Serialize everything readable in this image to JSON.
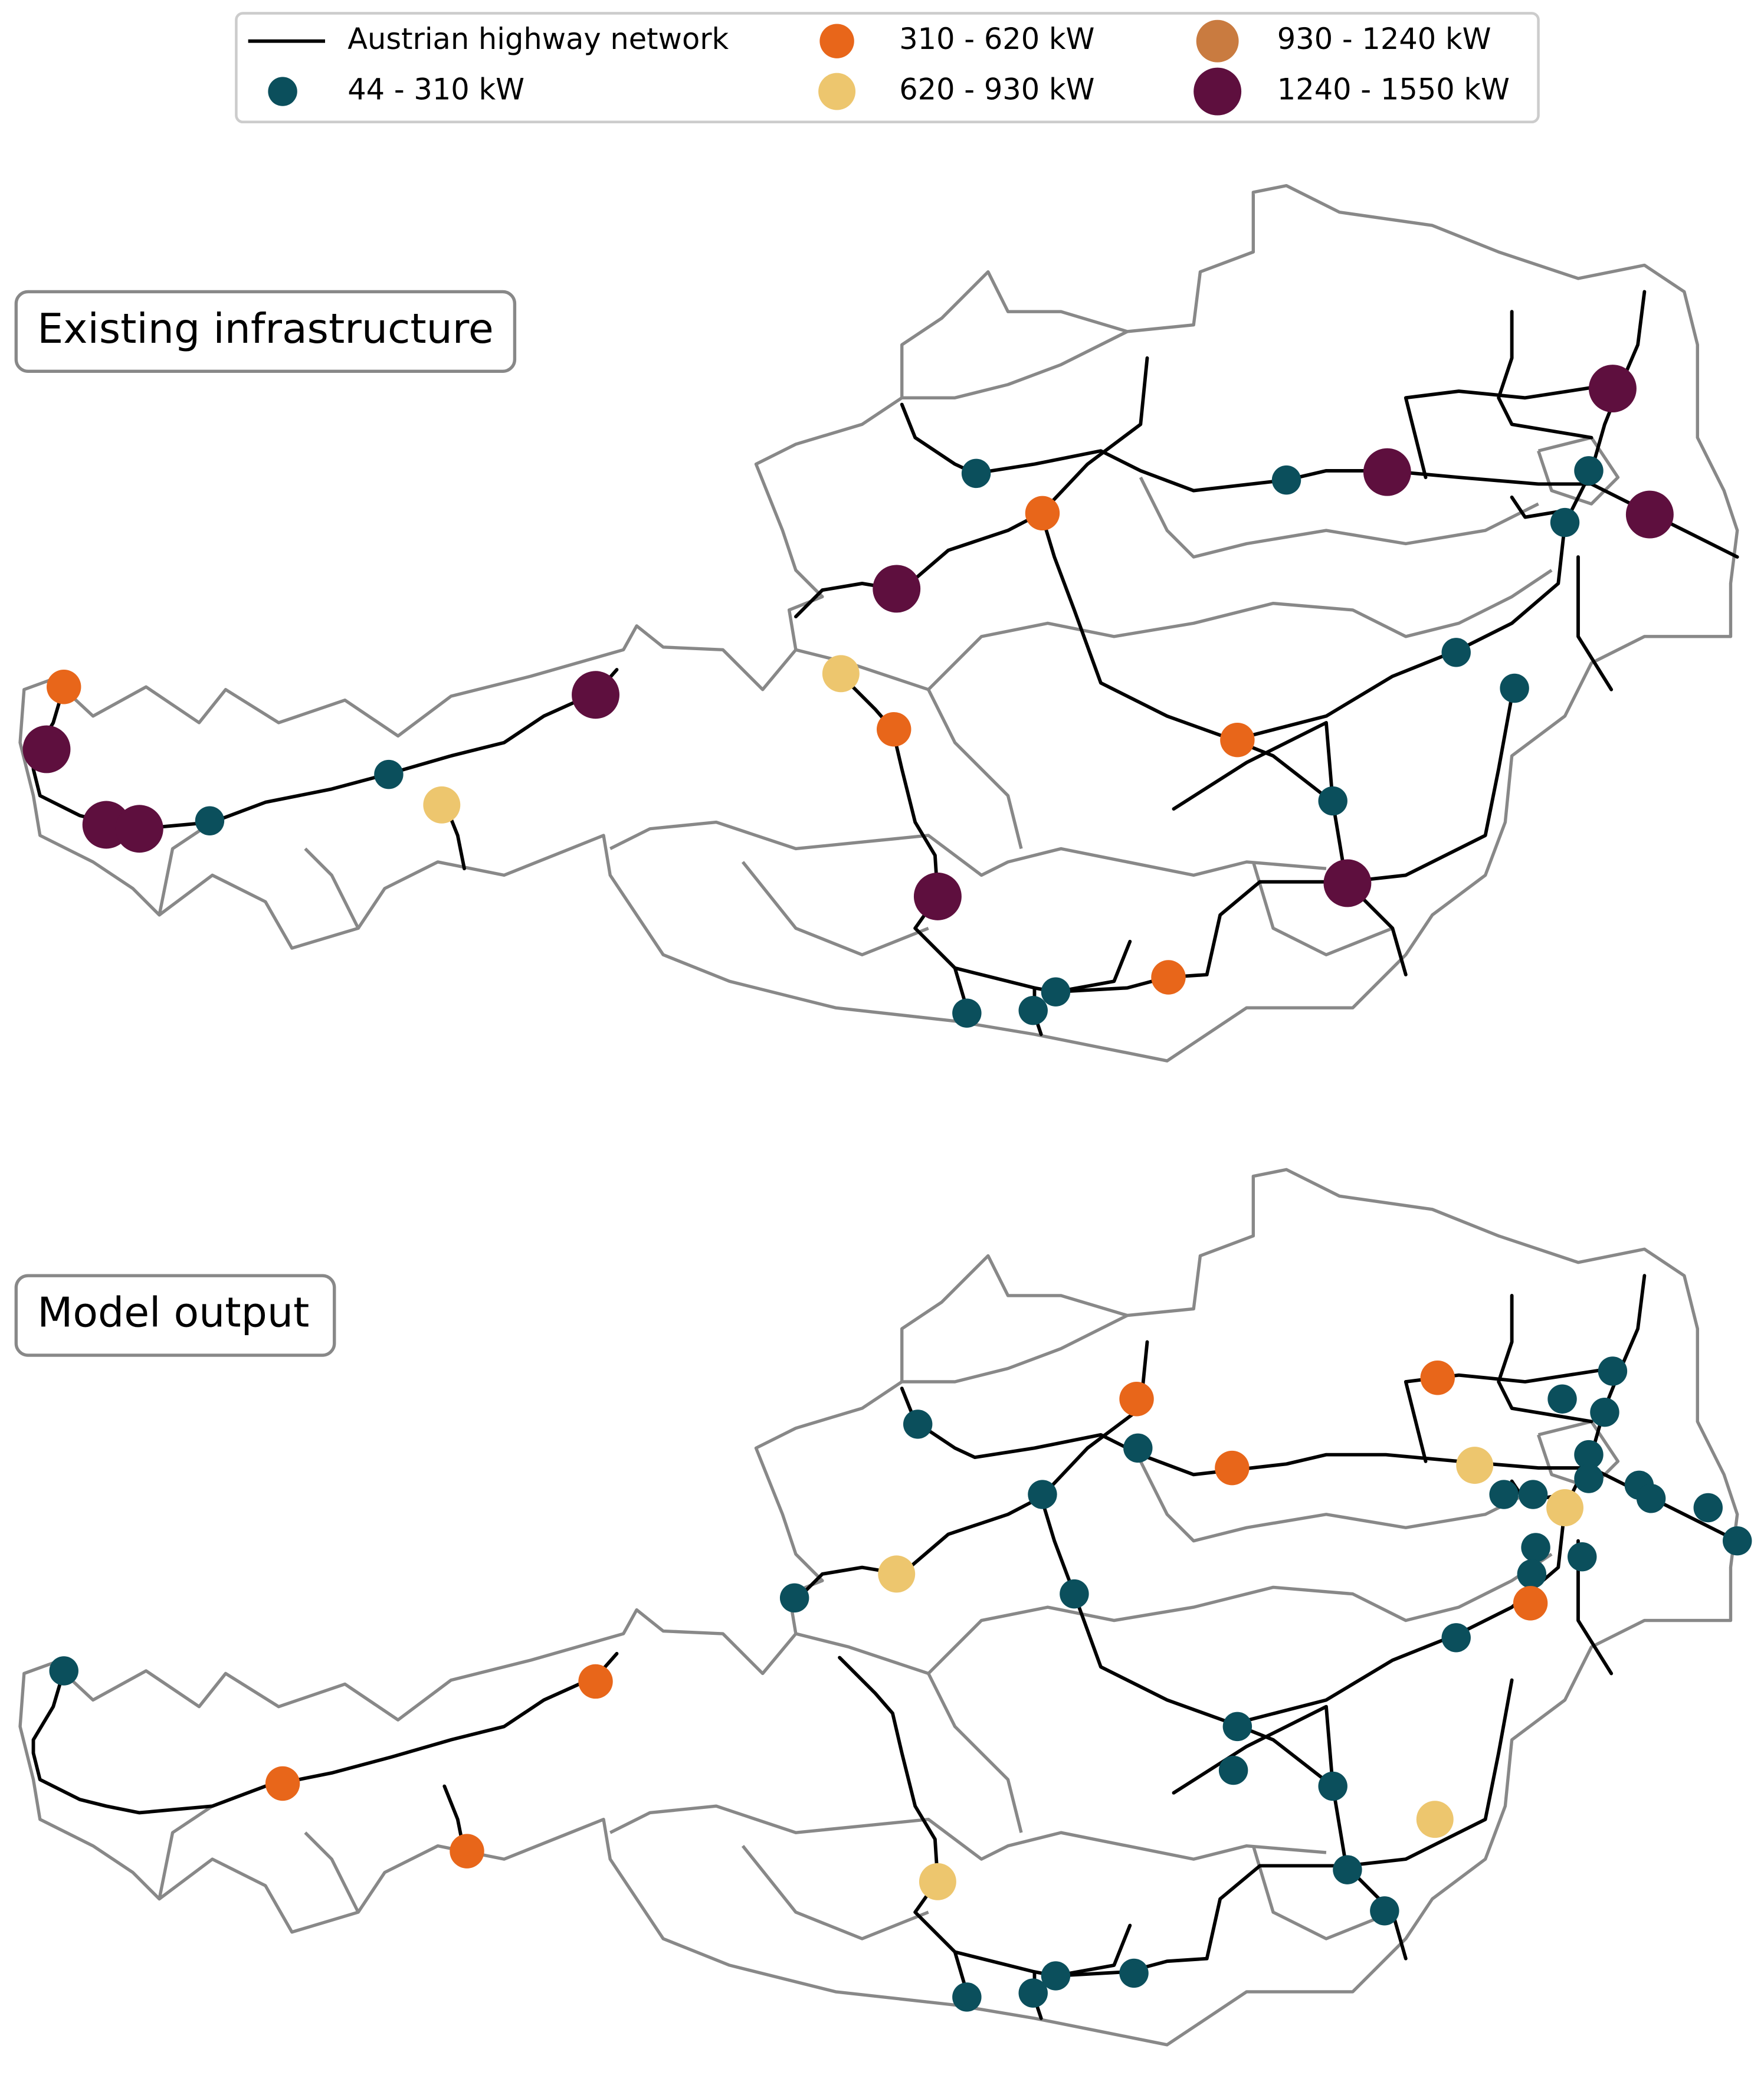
{
  "legend": {
    "items": [
      {
        "label": "Austrian highway network",
        "color": "#000000"
      },
      {
        "label": "44 - 310 kW",
        "color": "#0b4f5c"
      },
      {
        "label": "310 - 620 kW",
        "color": "#e8661a"
      },
      {
        "label": "620 - 930 kW",
        "color": "#edc66e"
      },
      {
        "label": "930 - 1240 kW",
        "color": "#c97b40"
      },
      {
        "label": "1240 - 1550 kW",
        "color": "#5e0f3e"
      }
    ]
  },
  "panels": [
    {
      "title": "Existing infrastructure"
    },
    {
      "title": "Model output"
    }
  ]
}
